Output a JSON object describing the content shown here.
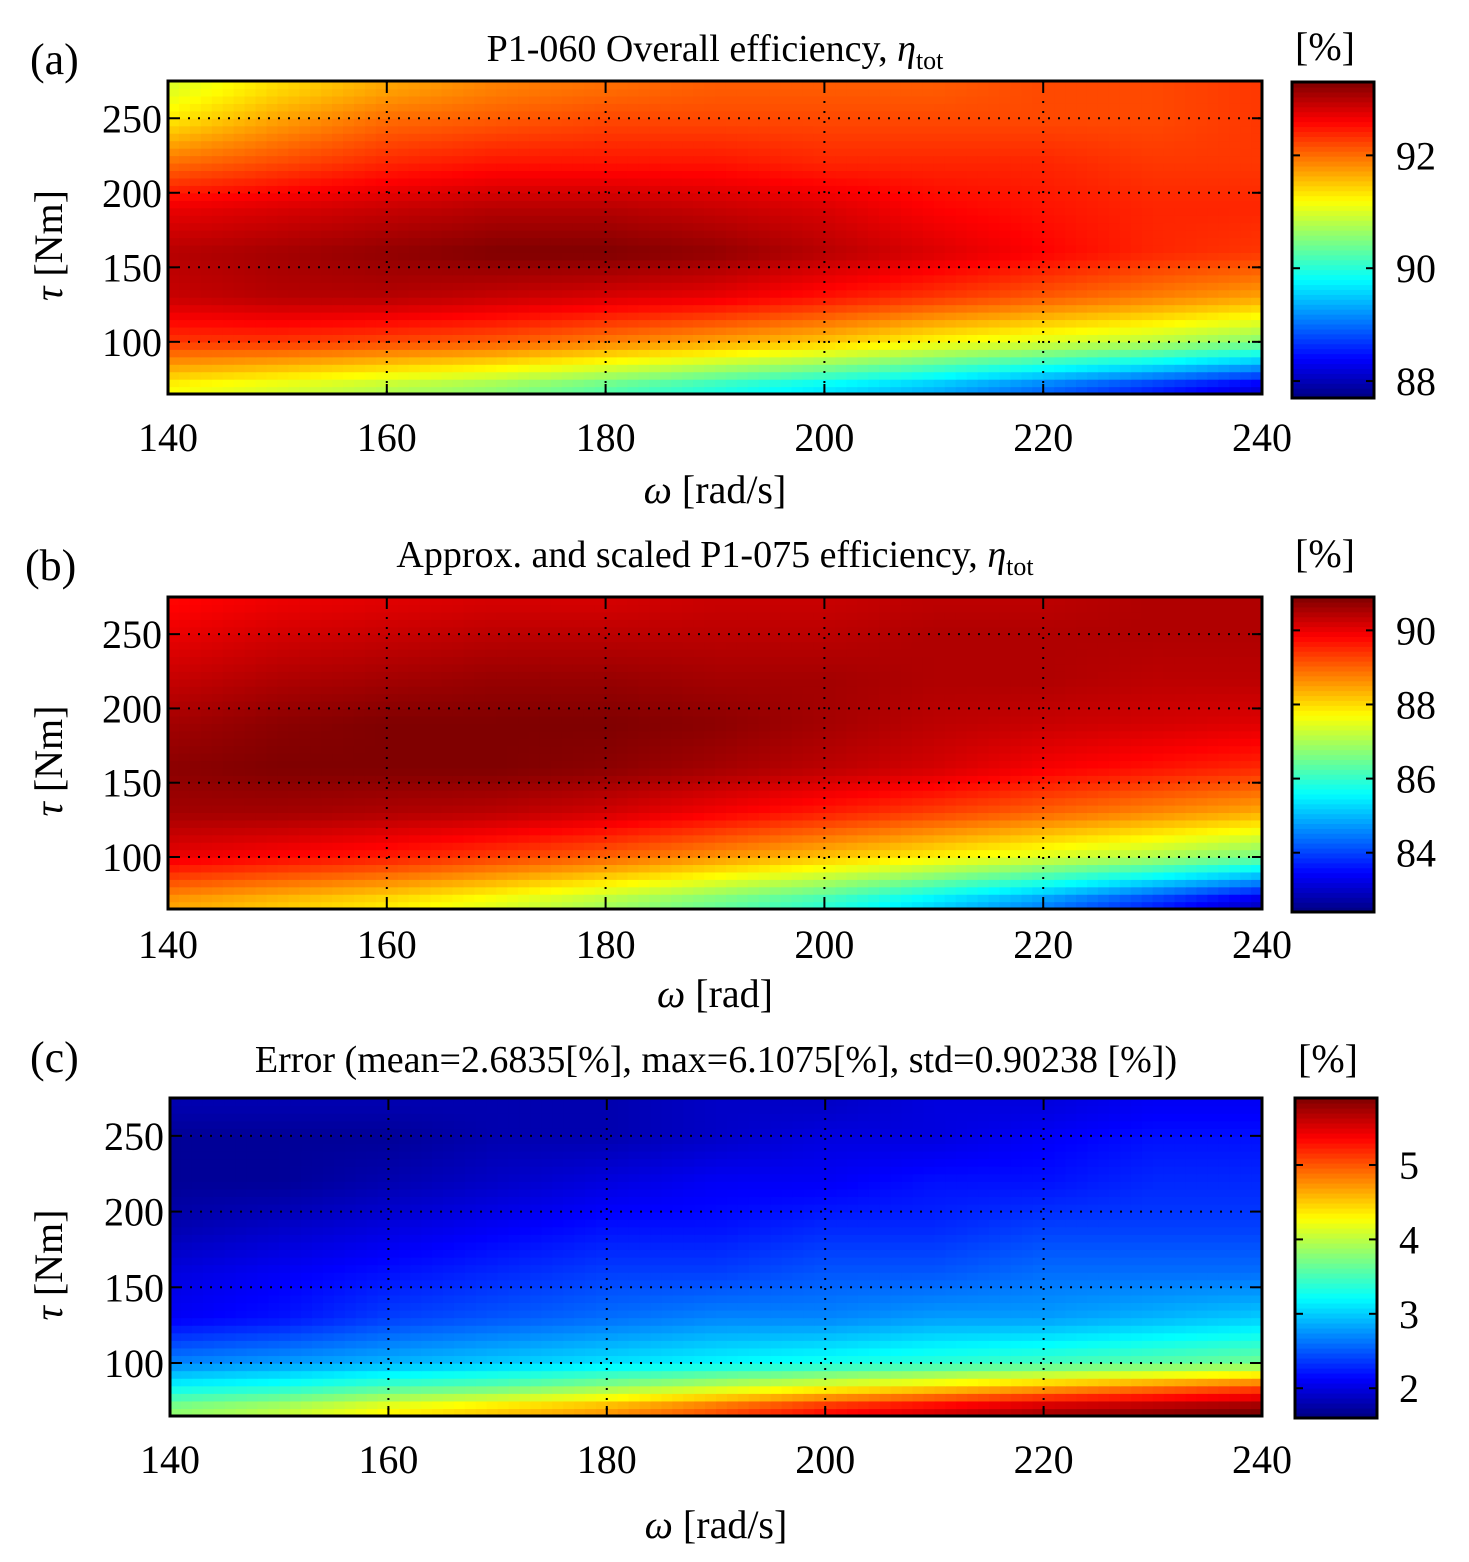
{
  "chart_data": [
    {
      "type": "heatmap",
      "panel_label": "(a)",
      "title_main": "P1-060 Overall efficiency, ",
      "title_symbol": "η",
      "title_sub": "tot",
      "xlabel_symbol": "ω",
      "xlabel_unit": "[rad/s]",
      "ylabel_symbol": "τ",
      "ylabel_unit": "[Nm]",
      "xlim": [
        140,
        240
      ],
      "ylim": [
        65,
        275
      ],
      "xticks": [
        140,
        160,
        180,
        200,
        220,
        240
      ],
      "yticks": [
        100,
        150,
        200,
        250
      ],
      "grid": true,
      "colorbar": {
        "label": "[%]",
        "range": [
          87.7,
          93.3
        ],
        "ticks": [
          88,
          90,
          92
        ]
      },
      "x": [
        140,
        150,
        160,
        170,
        180,
        190,
        200,
        210,
        220,
        230,
        240
      ],
      "y": [
        70,
        100,
        130,
        160,
        190,
        220,
        250,
        270
      ],
      "z": [
        [
          91.2,
          91.0,
          90.8,
          90.6,
          90.3,
          90.0,
          89.7,
          89.4,
          89.0,
          88.6,
          88.2
        ],
        [
          92.3,
          92.3,
          92.2,
          92.1,
          91.9,
          91.7,
          91.5,
          91.2,
          91.0,
          90.8,
          90.5
        ],
        [
          92.9,
          93.0,
          93.0,
          92.9,
          92.8,
          92.7,
          92.5,
          92.3,
          92.1,
          91.9,
          91.7
        ],
        [
          93.0,
          93.1,
          93.2,
          93.3,
          93.3,
          93.2,
          93.0,
          92.8,
          92.6,
          92.4,
          92.3
        ],
        [
          92.7,
          92.8,
          92.9,
          93.0,
          93.0,
          92.9,
          92.8,
          92.6,
          92.5,
          92.4,
          92.4
        ],
        [
          92.0,
          92.2,
          92.4,
          92.5,
          92.5,
          92.5,
          92.4,
          92.4,
          92.4,
          92.3,
          92.3
        ],
        [
          91.3,
          91.7,
          92.0,
          92.1,
          92.2,
          92.2,
          92.2,
          92.2,
          92.2,
          92.2,
          92.3
        ],
        [
          91.0,
          91.4,
          91.7,
          91.9,
          92.0,
          92.1,
          92.1,
          92.1,
          92.2,
          92.2,
          92.3
        ]
      ]
    },
    {
      "type": "heatmap",
      "panel_label": "(b)",
      "title_main": "Approx. and scaled P1-075 efficiency, ",
      "title_symbol": "η",
      "title_sub": "tot",
      "xlabel_symbol": "ω",
      "xlabel_unit": "[rad]",
      "ylabel_symbol": "τ",
      "ylabel_unit": "[Nm]",
      "xlim": [
        140,
        240
      ],
      "ylim": [
        65,
        275
      ],
      "xticks": [
        140,
        160,
        180,
        200,
        220,
        240
      ],
      "yticks": [
        100,
        150,
        200,
        250
      ],
      "grid": true,
      "colorbar": {
        "label": "[%]",
        "range": [
          82.4,
          90.9
        ],
        "ticks": [
          84,
          86,
          88,
          90
        ]
      },
      "x": [
        140,
        150,
        160,
        170,
        180,
        190,
        200,
        210,
        220,
        230,
        240
      ],
      "y": [
        70,
        100,
        130,
        160,
        190,
        220,
        250,
        270
      ],
      "z": [
        [
          88.5,
          88.2,
          87.9,
          87.5,
          87.0,
          86.5,
          86.0,
          85.3,
          84.6,
          83.8,
          83.0
        ],
        [
          90.0,
          89.8,
          89.6,
          89.3,
          89.0,
          88.6,
          88.2,
          87.8,
          87.4,
          87.0,
          86.5
        ],
        [
          90.6,
          90.6,
          90.5,
          90.4,
          90.2,
          89.9,
          89.6,
          89.3,
          89.0,
          88.7,
          88.4
        ],
        [
          90.8,
          90.9,
          90.9,
          90.9,
          90.8,
          90.6,
          90.4,
          90.2,
          89.9,
          89.7,
          89.5
        ],
        [
          90.6,
          90.8,
          90.9,
          90.9,
          90.9,
          90.8,
          90.6,
          90.4,
          90.3,
          90.2,
          90.1
        ],
        [
          90.3,
          90.5,
          90.6,
          90.7,
          90.7,
          90.6,
          90.6,
          90.5,
          90.5,
          90.4,
          90.4
        ],
        [
          90.0,
          90.2,
          90.3,
          90.4,
          90.4,
          90.4,
          90.4,
          90.5,
          90.5,
          90.5,
          90.5
        ],
        [
          89.8,
          90.0,
          90.1,
          90.2,
          90.2,
          90.3,
          90.3,
          90.4,
          90.4,
          90.5,
          90.5
        ]
      ]
    },
    {
      "type": "heatmap",
      "panel_label": "(c)",
      "title_main": "Error (mean=2.6835[%], max=6.1075[%], std=0.90238 [%])",
      "xlabel_symbol": "ω",
      "xlabel_unit": "[rad/s]",
      "ylabel_symbol": "τ",
      "ylabel_unit": "[Nm]",
      "xlim": [
        140,
        240
      ],
      "ylim": [
        65,
        275
      ],
      "xticks": [
        140,
        160,
        180,
        200,
        220,
        240
      ],
      "yticks": [
        100,
        150,
        200,
        250
      ],
      "grid": true,
      "colorbar": {
        "label": "[%]",
        "range": [
          1.6,
          5.9
        ],
        "ticks": [
          2,
          3,
          4,
          5
        ]
      },
      "x": [
        140,
        150,
        160,
        170,
        180,
        190,
        200,
        210,
        220,
        230,
        240
      ],
      "y": [
        70,
        85,
        100,
        130,
        160,
        190,
        220,
        250,
        270
      ],
      "z": [
        [
          3.8,
          4.0,
          4.3,
          4.5,
          4.7,
          5.0,
          5.3,
          5.5,
          5.7,
          5.8,
          5.9
        ],
        [
          3.2,
          3.3,
          3.5,
          3.6,
          3.8,
          4.0,
          4.2,
          4.4,
          4.6,
          4.8,
          5.0
        ],
        [
          2.7,
          2.8,
          2.9,
          3.0,
          3.1,
          3.2,
          3.3,
          3.4,
          3.5,
          3.6,
          3.7
        ],
        [
          2.1,
          2.2,
          2.4,
          2.5,
          2.6,
          2.7,
          2.7,
          2.8,
          2.8,
          2.9,
          3.0
        ],
        [
          2.0,
          2.1,
          2.2,
          2.3,
          2.4,
          2.4,
          2.5,
          2.5,
          2.6,
          2.6,
          2.6
        ],
        [
          1.8,
          1.9,
          2.0,
          2.1,
          2.2,
          2.2,
          2.3,
          2.3,
          2.4,
          2.4,
          2.4
        ],
        [
          1.7,
          1.7,
          1.8,
          1.9,
          2.0,
          2.1,
          2.1,
          2.2,
          2.2,
          2.3,
          2.3
        ],
        [
          1.7,
          1.7,
          1.7,
          1.8,
          1.8,
          1.9,
          2.0,
          2.0,
          2.1,
          2.2,
          2.2
        ],
        [
          1.8,
          1.8,
          1.8,
          1.8,
          1.8,
          1.9,
          1.9,
          2.0,
          2.0,
          2.1,
          2.1
        ]
      ]
    }
  ]
}
